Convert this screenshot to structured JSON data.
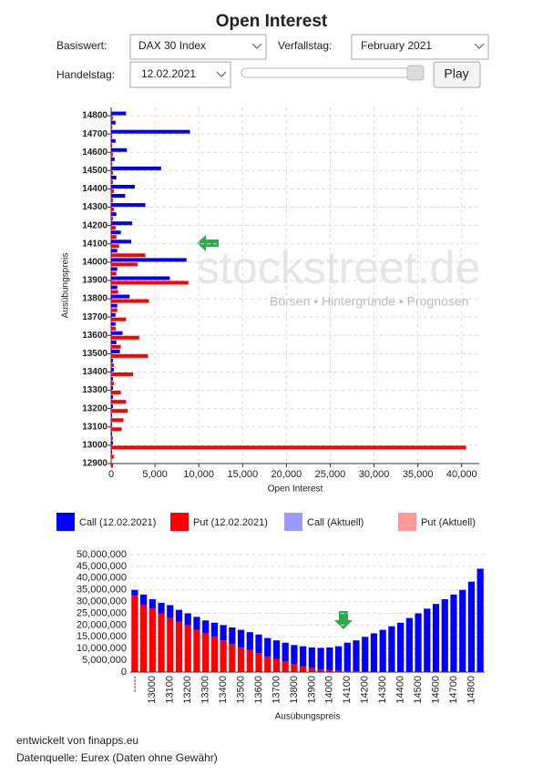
{
  "header": {
    "title": "Open Interest"
  },
  "controls": {
    "basiswert_label": "Basiswert:",
    "basiswert": "DAX 30 Index",
    "verfallstag_label": "Verfallstag:",
    "verfallstag": "February 2021",
    "handelstag_label": "Handelstag:",
    "handelstag": "12.02.2021",
    "play": "Play"
  },
  "watermark": {
    "brand": "stockstreet.de",
    "tagline": "Börsen • Hintergründe • Prognosen"
  },
  "legend": {
    "items": [
      {
        "name": "Call (12.02.2021)",
        "color": "#0000ff"
      },
      {
        "name": "Put (12.02.2021)",
        "color": "#ff0000"
      },
      {
        "name": "Call (Aktuell)",
        "color": "#9999ff"
      },
      {
        "name": "Put (Aktuell)",
        "color": "#ff9999"
      }
    ]
  },
  "chart_data": [
    {
      "type": "bar",
      "orientation": "horizontal",
      "x_label": "Open Interest",
      "y_label": "Ausübungspreis",
      "categories": [
        14800,
        14750,
        14700,
        14650,
        14600,
        14550,
        14500,
        14450,
        14400,
        14350,
        14300,
        14250,
        14200,
        14150,
        14100,
        14050,
        14000,
        13950,
        13900,
        13850,
        13800,
        13750,
        13700,
        13650,
        13600,
        13550,
        13500,
        13450,
        13400,
        13350,
        13300,
        13250,
        13200,
        13150,
        13100,
        13050,
        13000,
        12950,
        12900
      ],
      "series": [
        {
          "color": "#0000ff",
          "values": [
            1700,
            500,
            9000,
            500,
            1800,
            400,
            5700,
            600,
            2700,
            1600,
            3900,
            600,
            2400,
            1100,
            2300,
            700,
            8600,
            700,
            6700,
            700,
            2100,
            700,
            500,
            500,
            1300,
            600,
            1000,
            200,
            300,
            200,
            200,
            200,
            200,
            100,
            100,
            100,
            200,
            100,
            0
          ]
        },
        {
          "color": "#ff0000",
          "values": [
            200,
            100,
            100,
            100,
            200,
            100,
            200,
            200,
            300,
            200,
            300,
            200,
            500,
            600,
            900,
            3900,
            3000,
            600,
            8800,
            800,
            4300,
            700,
            1700,
            500,
            3200,
            1100,
            4200,
            300,
            2500,
            300,
            1100,
            1700,
            1900,
            1400,
            1200,
            200,
            40500,
            300,
            200
          ]
        }
      ],
      "xlim": [
        0,
        42000
      ],
      "xticks": [
        0,
        {
          "value": 5000,
          "label": "5,000"
        },
        {
          "value": 10000,
          "label": "10,000"
        },
        {
          "value": 15000,
          "label": "15,000"
        },
        {
          "value": 20000,
          "label": "20,000"
        },
        {
          "value": 25000,
          "label": "25,000"
        },
        {
          "value": 30000,
          "label": "30,000"
        },
        {
          "value": 35000,
          "label": "35,000"
        },
        {
          "value": 40000,
          "label": "40,000"
        }
      ],
      "ylim": [
        12900,
        14845
      ],
      "yticks": [
        12900,
        13000,
        13100,
        13200,
        13300,
        13400,
        13500,
        13600,
        13700,
        13800,
        13900,
        14000,
        14100,
        14200,
        14300,
        14400,
        14500,
        14600,
        14700,
        14800
      ],
      "grid": true
    },
    {
      "type": "bar",
      "orientation": "vertical",
      "stacked": true,
      "x_label": "Ausübungspreis",
      "categories": [
        "-----",
        null,
        "13000",
        null,
        "13100",
        null,
        "13200",
        null,
        "13300",
        null,
        "13400",
        null,
        "13500",
        null,
        "13600",
        null,
        "13700",
        null,
        "13800",
        null,
        "13900",
        null,
        "14000",
        null,
        "14100",
        null,
        "14200",
        null,
        "14300",
        null,
        "14400",
        null,
        "14500",
        null,
        "14600",
        null,
        "14700",
        null,
        "14800",
        null
      ],
      "series": [
        {
          "color": "#ff0000",
          "values": [
            32500000,
            28500000,
            27000000,
            25000000,
            23000000,
            21500000,
            20000000,
            18000000,
            16500000,
            15000000,
            13500000,
            12000000,
            10500000,
            9500000,
            8000000,
            6500000,
            5500000,
            4500000,
            3500000,
            2500000,
            1800000,
            1200000,
            800000,
            600000,
            400000,
            300000,
            200000,
            100000,
            100000,
            0,
            0,
            0,
            0,
            0,
            0,
            0,
            0,
            0,
            0,
            0
          ]
        },
        {
          "color": "#0000ff",
          "values": [
            2500000,
            4500000,
            4000000,
            4500000,
            5500000,
            5000000,
            5000000,
            5500000,
            5500000,
            6000000,
            6500000,
            7000000,
            7500000,
            7500000,
            8000000,
            8000000,
            8000000,
            8000000,
            8000000,
            8500000,
            8700000,
            9100000,
            9700000,
            10400000,
            12100000,
            13200000,
            14800000,
            16400000,
            17900000,
            19500000,
            21000000,
            23000000,
            25000000,
            27000000,
            29000000,
            31000000,
            33000000,
            35000000,
            38500000,
            44000000
          ]
        }
      ],
      "ylim": [
        0,
        50000000
      ],
      "yticks": [
        0,
        {
          "value": 5000000,
          "label": "5,000,000"
        },
        {
          "value": 10000000,
          "label": "10,000,000"
        },
        {
          "value": 15000000,
          "label": "15,000,000"
        },
        {
          "value": 20000000,
          "label": "20,000,000"
        },
        {
          "value": 25000000,
          "label": "25,000,000"
        },
        {
          "value": 30000000,
          "label": "30,000,000"
        },
        {
          "value": 35000000,
          "label": "35,000,000"
        },
        {
          "value": 40000000,
          "label": "40,000,000"
        },
        {
          "value": 45000000,
          "label": "45,000,000"
        },
        {
          "value": 50000000,
          "label": "50,000,000"
        }
      ],
      "grid": true
    }
  ],
  "footer": {
    "credit": "entwickelt von finapps.eu",
    "source": "Datenquelle: Eurex (Daten ohne Gewähr)"
  }
}
